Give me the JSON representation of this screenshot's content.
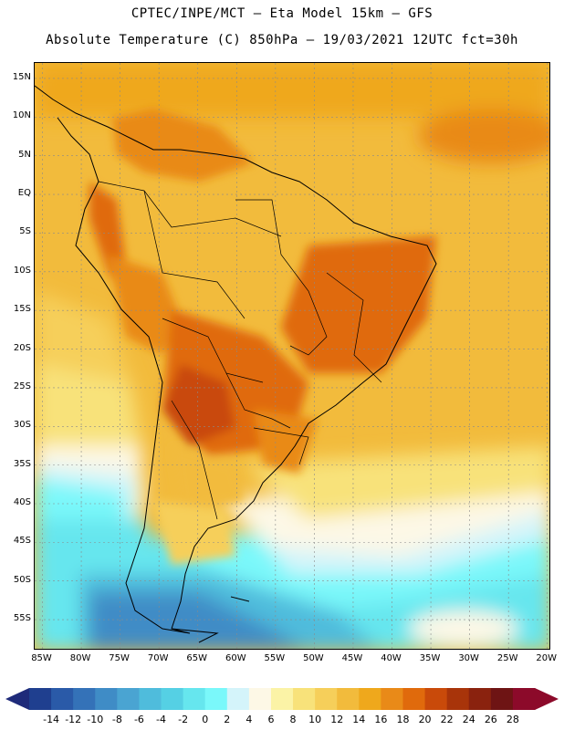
{
  "title": {
    "line1": "CPTEC/INPE/MCT —  Eta Model 15km — GFS",
    "line2": "Absolute Temperature (C) 850hPa — 19/03/2021 12UTC fct=30h"
  },
  "map": {
    "lat_labels": [
      "15N",
      "10N",
      "5N",
      "EQ",
      "5S",
      "10S",
      "15S",
      "20S",
      "25S",
      "30S",
      "35S",
      "40S",
      "45S",
      "50S",
      "55S"
    ],
    "lat_values": [
      15,
      10,
      5,
      0,
      -5,
      -10,
      -15,
      -20,
      -25,
      -30,
      -35,
      -40,
      -45,
      -50,
      -55
    ],
    "lon_labels": [
      "85W",
      "80W",
      "75W",
      "70W",
      "65W",
      "60W",
      "55W",
      "50W",
      "45W",
      "40W",
      "35W",
      "30W",
      "25W",
      "20W"
    ],
    "lon_values": [
      -85,
      -80,
      -75,
      -70,
      -65,
      -60,
      -55,
      -50,
      -45,
      -40,
      -35,
      -30,
      -25,
      -20
    ],
    "lon_range": [
      -86,
      -19.5
    ],
    "lat_range": [
      -59,
      17
    ]
  },
  "colorbar": {
    "ticks": [
      "-14",
      "-12",
      "-10",
      "-8",
      "-6",
      "-4",
      "-2",
      "0",
      "2",
      "4",
      "6",
      "8",
      "10",
      "12",
      "14",
      "16",
      "18",
      "20",
      "22",
      "24",
      "26",
      "28"
    ],
    "colors": [
      "#1f3f8f",
      "#2a5aa8",
      "#3472b8",
      "#3f8cc6",
      "#4aa4d2",
      "#4fbcdc",
      "#55d0e4",
      "#66e6ee",
      "#7af8fa",
      "#d4f4fa",
      "#fdf8e6",
      "#fbf3a6",
      "#f8e27a",
      "#f6cf5a",
      "#f2bb3c",
      "#efa81c",
      "#e98a18",
      "#e06a0c",
      "#c94a0a",
      "#a8340a",
      "#8a220e",
      "#6e1414",
      "#8c0a2a"
    ],
    "low_arrow_color": "#1f2b7a",
    "high_arrow_color": "#8c0a2a"
  }
}
